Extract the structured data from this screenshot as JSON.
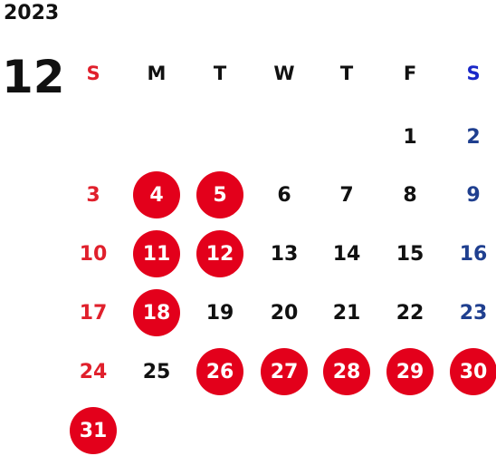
{
  "calendar": {
    "year": "2023",
    "month": "12",
    "weekdays": [
      "S",
      "M",
      "T",
      "W",
      "T",
      "F",
      "S"
    ],
    "colors": {
      "text": "#111111",
      "sunday": "#e0202c",
      "saturday": "#1f3f8f",
      "highlight_circle": "#e3001b",
      "highlight_text": "#ffffff"
    },
    "weeks": [
      [
        null,
        null,
        null,
        null,
        null,
        "1",
        "2"
      ],
      [
        "3",
        "4",
        "5",
        "6",
        "7",
        "8",
        "9"
      ],
      [
        "10",
        "11",
        "12",
        "13",
        "14",
        "15",
        "16"
      ],
      [
        "17",
        "18",
        "19",
        "20",
        "21",
        "22",
        "23"
      ],
      [
        "24",
        "25",
        "26",
        "27",
        "28",
        "29",
        "30"
      ],
      [
        "31",
        null,
        null,
        null,
        null,
        null,
        null
      ]
    ],
    "highlighted_days": [
      "4",
      "5",
      "11",
      "12",
      "18",
      "26",
      "27",
      "28",
      "29",
      "30",
      "31"
    ]
  }
}
